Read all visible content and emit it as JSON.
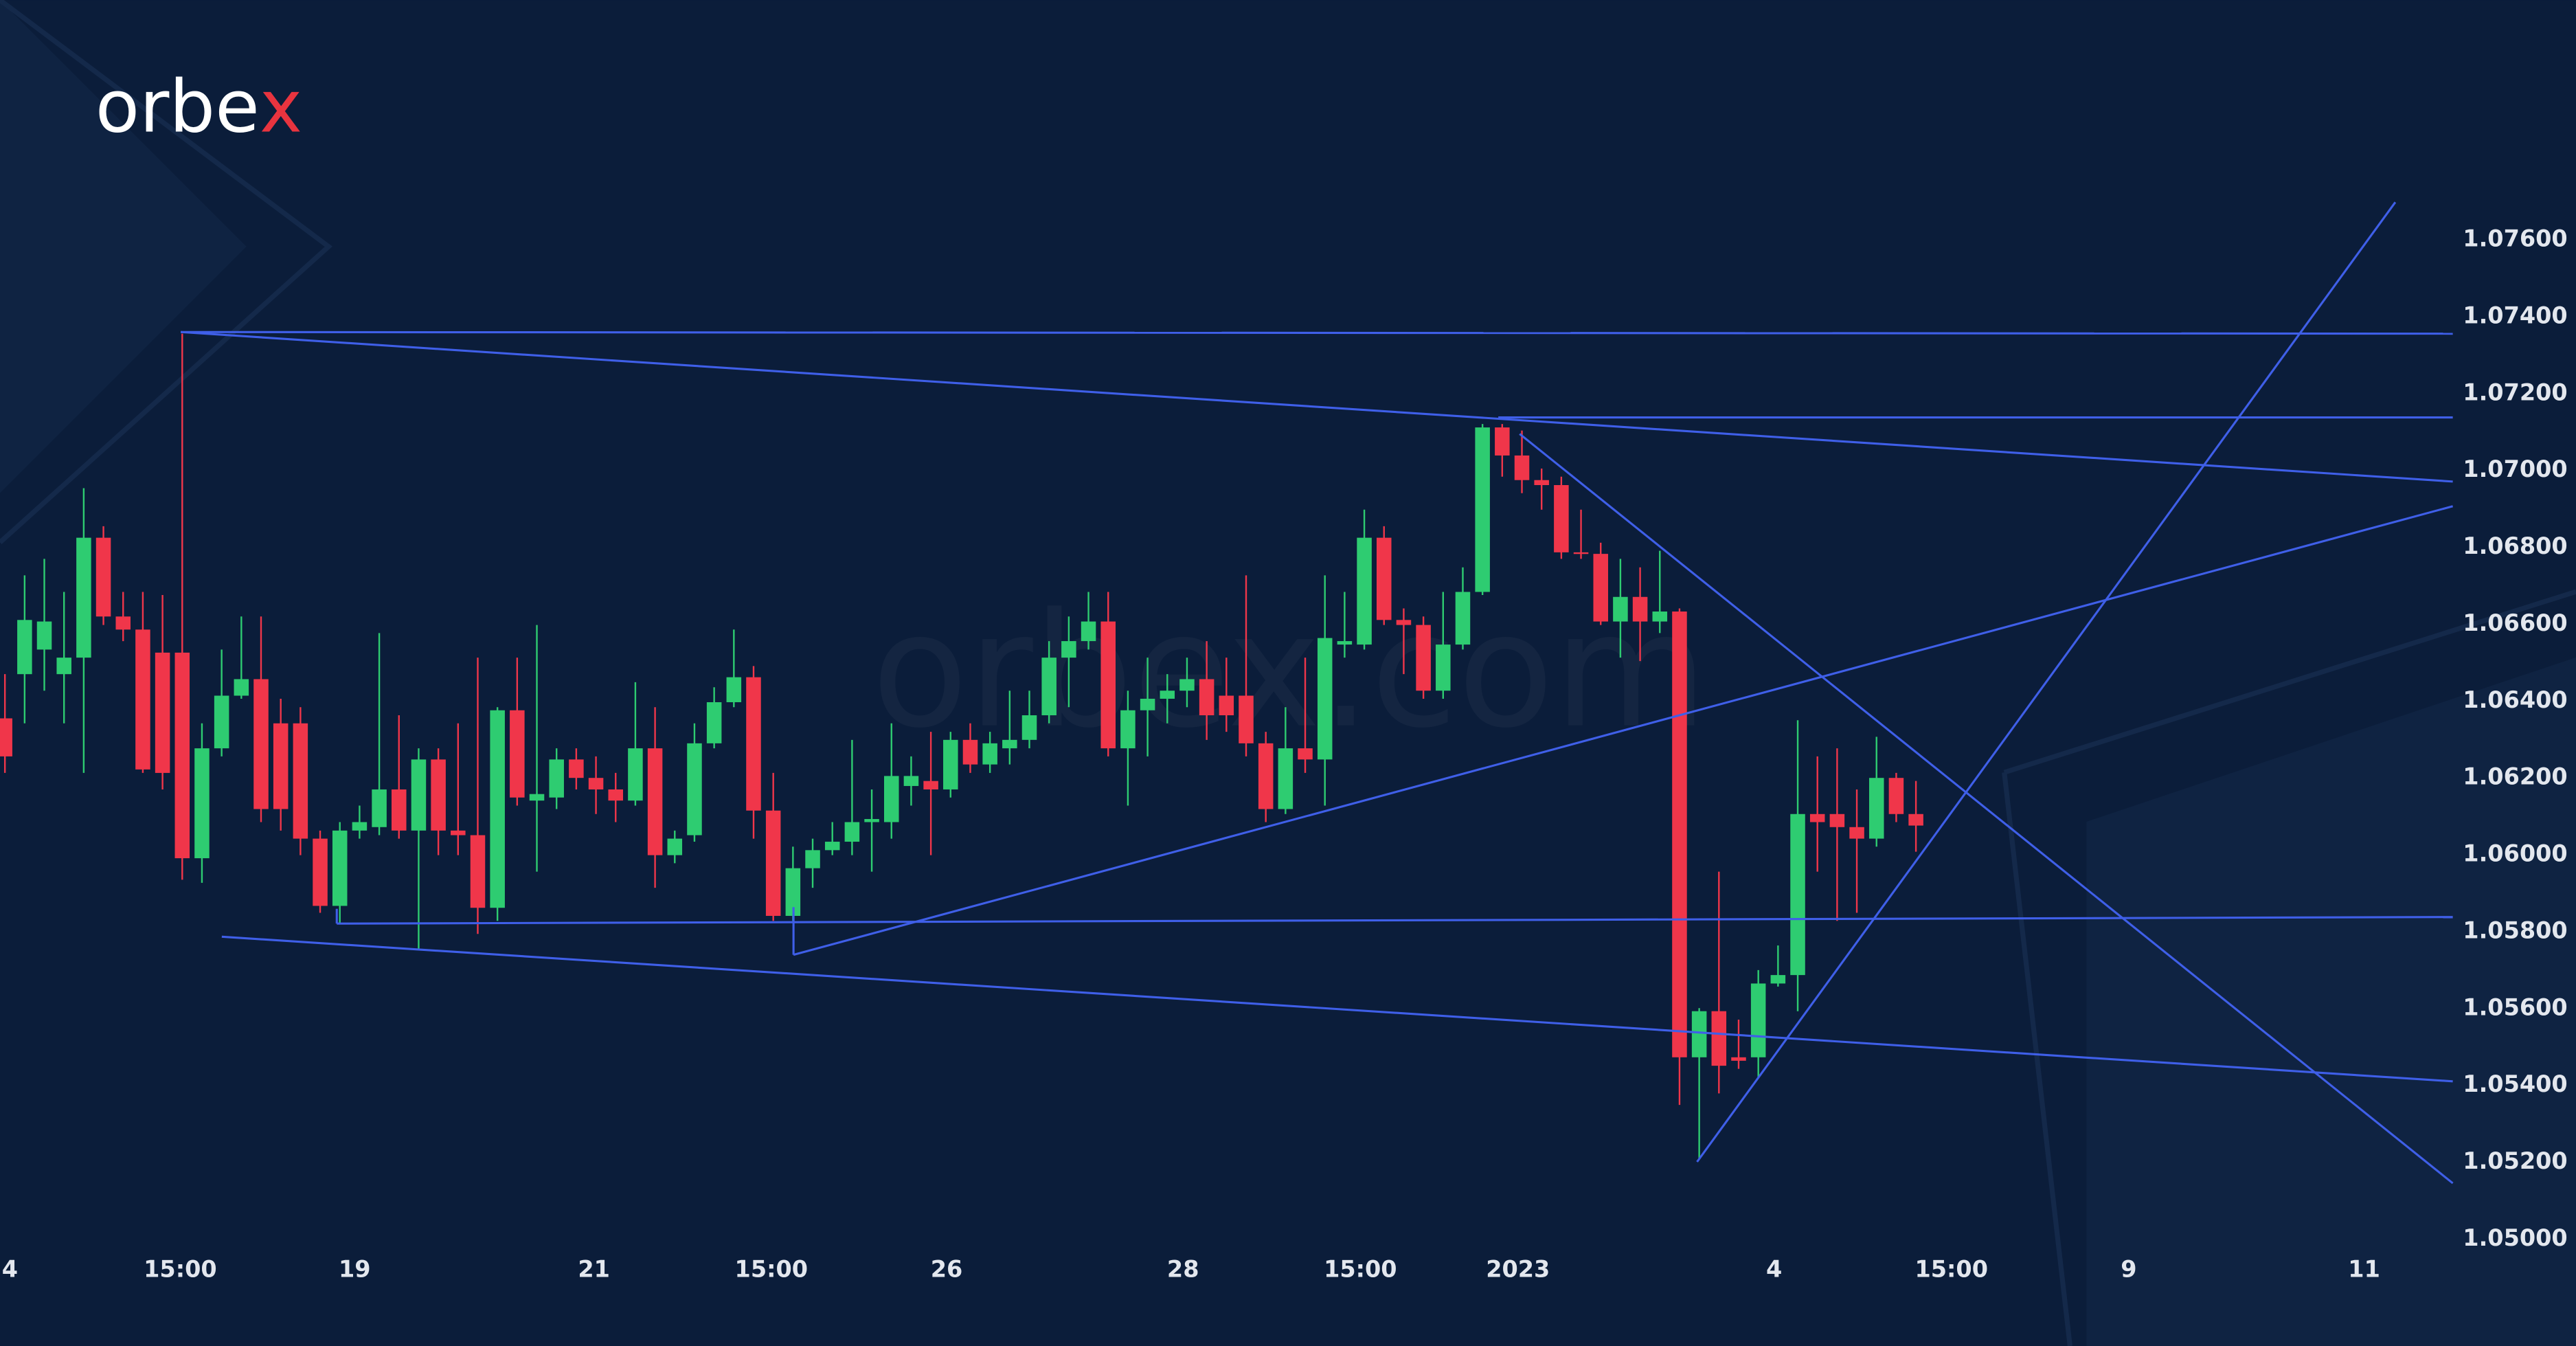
{
  "logo": [
    "orbe",
    "x"
  ],
  "watermark": "orbex.com",
  "chart_data": {
    "type": "candlestick",
    "up_color": "#2ecc71",
    "down_color": "#f0364a",
    "ylim": [
      1.04722,
      1.08224
    ],
    "yticks": [
      {
        "value": 1.05,
        "label": "1.05000"
      },
      {
        "value": 1.052,
        "label": "1.05200"
      },
      {
        "value": 1.054,
        "label": "1.05400"
      },
      {
        "value": 1.056,
        "label": "1.05600"
      },
      {
        "value": 1.058,
        "label": "1.05800"
      },
      {
        "value": 1.06,
        "label": "1.06000"
      },
      {
        "value": 1.062,
        "label": "1.06200"
      },
      {
        "value": 1.064,
        "label": "1.06400"
      },
      {
        "value": 1.066,
        "label": "1.06600"
      },
      {
        "value": 1.068,
        "label": "1.06800"
      },
      {
        "value": 1.07,
        "label": "1.07000"
      },
      {
        "value": 1.072,
        "label": "1.07200"
      },
      {
        "value": 1.074,
        "label": "1.07400"
      },
      {
        "value": 1.076,
        "label": "1.07600"
      }
    ],
    "xlim": [
      -0.25,
      124.25
    ],
    "xticks": [
      {
        "value": 0.25,
        "label": "4"
      },
      {
        "value": 8.9,
        "label": "15:00"
      },
      {
        "value": 17.75,
        "label": "19"
      },
      {
        "value": 29.9,
        "label": "21"
      },
      {
        "value": 38.9,
        "label": "15:00"
      },
      {
        "value": 47.8,
        "label": "26"
      },
      {
        "value": 59.8,
        "label": "28"
      },
      {
        "value": 68.8,
        "label": "15:00"
      },
      {
        "value": 76.8,
        "label": "2023"
      },
      {
        "value": 89.8,
        "label": "4"
      },
      {
        "value": 98.8,
        "label": "15:00"
      },
      {
        "value": 107.8,
        "label": "9"
      },
      {
        "value": 119.75,
        "label": "11"
      }
    ],
    "open": [
      1.06355,
      1.0647,
      1.06534,
      1.0647,
      1.06513,
      1.06825,
      1.0662,
      1.06586,
      1.06526,
      1.06526,
      1.05991,
      1.06277,
      1.06414,
      1.06457,
      1.06342,
      1.06342,
      1.06042,
      1.05867,
      1.06063,
      1.06072,
      1.0617,
      1.06063,
      1.06248,
      1.06063,
      1.06051,
      1.05862,
      1.06376,
      1.06141,
      1.06149,
      1.06248,
      1.062,
      1.0617,
      1.06141,
      1.06277,
      1.05999,
      1.06051,
      1.0629,
      1.06397,
      1.06462,
      1.06115,
      1.05841,
      1.05965,
      1.06012,
      1.06034,
      1.06085,
      1.06085,
      1.06179,
      1.06192,
      1.0617,
      1.06299,
      1.06235,
      1.06277,
      1.06299,
      1.06363,
      1.06513,
      1.06556,
      1.06607,
      1.06277,
      1.06376,
      1.06406,
      1.06427,
      1.06457,
      1.06414,
      1.06414,
      1.0629,
      1.06119,
      1.06277,
      1.06248,
      1.06547,
      1.06547,
      1.06825,
      1.06611,
      1.06598,
      1.06427,
      1.06547,
      1.06684,
      1.07112,
      1.07039,
      1.06975,
      1.06962,
      1.06787,
      1.06783,
      1.06607,
      1.06671,
      1.06607,
      1.06633,
      1.05473,
      1.05593,
      1.05473,
      1.05473,
      1.05665,
      1.05687,
      1.06106,
      1.06106,
      1.06072,
      1.06042,
      1.062,
      1.06106
    ],
    "high": [
      1.0647,
      1.06727,
      1.0677,
      1.06684,
      1.06954,
      1.06855,
      1.06684,
      1.06684,
      1.06676,
      1.07356,
      1.06342,
      1.06534,
      1.0662,
      1.0662,
      1.06406,
      1.06384,
      1.06063,
      1.06085,
      1.06128,
      1.06577,
      1.06363,
      1.06277,
      1.06277,
      1.06342,
      1.06513,
      1.06384,
      1.06513,
      1.06598,
      1.06277,
      1.06277,
      1.06256,
      1.06213,
      1.06449,
      1.06384,
      1.06063,
      1.06342,
      1.06436,
      1.06586,
      1.06491,
      1.06213,
      1.06021,
      1.06042,
      1.06085,
      1.06299,
      1.0617,
      1.06342,
      1.06256,
      1.0632,
      1.0632,
      1.06342,
      1.0632,
      1.06427,
      1.06427,
      1.06556,
      1.0662,
      1.06684,
      1.06684,
      1.06427,
      1.06513,
      1.0647,
      1.06513,
      1.06556,
      1.06513,
      1.06727,
      1.0632,
      1.06384,
      1.06513,
      1.06727,
      1.06684,
      1.06898,
      1.06855,
      1.06641,
      1.0662,
      1.06684,
      1.06748,
      1.07121,
      1.07121,
      1.07104,
      1.07005,
      1.06984,
      1.06898,
      1.06812,
      1.0677,
      1.06748,
      1.06791,
      1.06641,
      1.05601,
      1.05956,
      1.05571,
      1.057,
      1.05764,
      1.0635,
      1.06256,
      1.06277,
      1.0617,
      1.06307,
      1.06213,
      1.06192
    ],
    "low": [
      1.06213,
      1.06342,
      1.06427,
      1.06342,
      1.06213,
      1.06598,
      1.06556,
      1.06213,
      1.0617,
      1.05935,
      1.05927,
      1.06256,
      1.06406,
      1.06085,
      1.06063,
      1.05999,
      1.05849,
      1.0582,
      1.06042,
      1.06051,
      1.06042,
      1.05755,
      1.05999,
      1.05999,
      1.05794,
      1.05828,
      1.06128,
      1.05956,
      1.06119,
      1.0617,
      1.06106,
      1.06085,
      1.06128,
      1.05914,
      1.05978,
      1.06034,
      1.06277,
      1.06384,
      1.06042,
      1.05828,
      1.05828,
      1.05914,
      1.05999,
      1.05999,
      1.05956,
      1.06042,
      1.06128,
      1.05999,
      1.06149,
      1.06213,
      1.06213,
      1.06235,
      1.06277,
      1.06342,
      1.06384,
      1.06534,
      1.06256,
      1.06128,
      1.06256,
      1.06342,
      1.06384,
      1.06299,
      1.0632,
      1.06256,
      1.06085,
      1.06106,
      1.06213,
      1.06128,
      1.06513,
      1.06534,
      1.06598,
      1.0647,
      1.06406,
      1.06406,
      1.06534,
      1.06676,
      1.06984,
      1.06941,
      1.06898,
      1.0677,
      1.0677,
      1.06598,
      1.06513,
      1.06504,
      1.06577,
      1.05349,
      1.05207,
      1.05379,
      1.05443,
      1.05421,
      1.05657,
      1.05593,
      1.05956,
      1.05828,
      1.05849,
      1.06021,
      1.06085,
      1.06008
    ],
    "close": [
      1.06256,
      1.06611,
      1.06607,
      1.06513,
      1.06825,
      1.0662,
      1.06586,
      1.06222,
      1.06213,
      1.05991,
      1.06277,
      1.06414,
      1.06457,
      1.06119,
      1.06119,
      1.06042,
      1.05867,
      1.06063,
      1.06085,
      1.0617,
      1.06063,
      1.06248,
      1.06063,
      1.06051,
      1.05862,
      1.06376,
      1.06149,
      1.06158,
      1.06248,
      1.062,
      1.0617,
      1.06141,
      1.06277,
      1.05999,
      1.06042,
      1.0629,
      1.06397,
      1.06462,
      1.06115,
      1.05841,
      1.05965,
      1.06012,
      1.06034,
      1.06085,
      1.06093,
      1.06205,
      1.06205,
      1.0617,
      1.06299,
      1.06235,
      1.0629,
      1.06299,
      1.06363,
      1.06513,
      1.06556,
      1.06607,
      1.06277,
      1.06376,
      1.06406,
      1.06427,
      1.06457,
      1.06363,
      1.06363,
      1.0629,
      1.06119,
      1.06277,
      1.06248,
      1.06564,
      1.06556,
      1.06825,
      1.06611,
      1.06598,
      1.06427,
      1.06547,
      1.06684,
      1.07112,
      1.07039,
      1.06975,
      1.06962,
      1.06787,
      1.06783,
      1.06607,
      1.06671,
      1.06607,
      1.06633,
      1.05473,
      1.05593,
      1.05451,
      1.05464,
      1.05665,
      1.05687,
      1.06106,
      1.06085,
      1.06072,
      1.06042,
      1.062,
      1.06106,
      1.06076
    ]
  }
}
